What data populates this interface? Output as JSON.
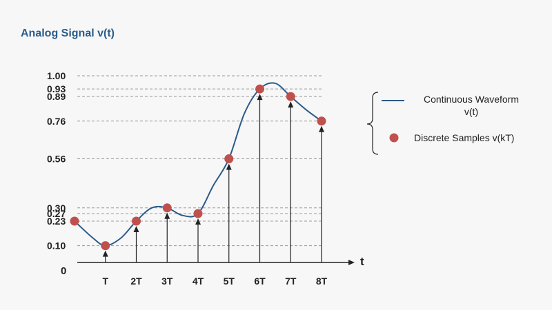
{
  "chart_data": {
    "type": "line",
    "title": "Analog Signal v(t)",
    "xlabel": "t",
    "ylabel": "",
    "origin_label": "0",
    "ylim": [
      0,
      1.0
    ],
    "y_ticks": [
      {
        "value": 1.0,
        "label": "1.00"
      },
      {
        "value": 0.93,
        "label": "0.93"
      },
      {
        "value": 0.89,
        "label": "0.89"
      },
      {
        "value": 0.76,
        "label": "0.76"
      },
      {
        "value": 0.56,
        "label": "0.56"
      },
      {
        "value": 0.3,
        "label": "0.30"
      },
      {
        "value": 0.27,
        "label": "0.27"
      },
      {
        "value": 0.23,
        "label": "0.23"
      },
      {
        "value": 0.1,
        "label": "0.10"
      }
    ],
    "categories": [
      "T",
      "2T",
      "3T",
      "4T",
      "5T",
      "6T",
      "7T",
      "8T"
    ],
    "series": [
      {
        "name": "Continuous Waveform v(t)",
        "kind": "curve",
        "x": [
          0,
          0.6,
          1,
          1.5,
          2,
          2.5,
          3,
          3.5,
          4,
          4.5,
          5,
          5.5,
          6,
          6.5,
          7,
          7.5,
          8
        ],
        "values": [
          0.23,
          0.14,
          0.1,
          0.14,
          0.23,
          0.3,
          0.3,
          0.26,
          0.27,
          0.42,
          0.56,
          0.8,
          0.93,
          0.96,
          0.89,
          0.82,
          0.76
        ]
      },
      {
        "name": "Discrete Samples v(kT)",
        "kind": "samples",
        "x": [
          0,
          1,
          2,
          3,
          4,
          5,
          6,
          7,
          8
        ],
        "values": [
          0.23,
          0.1,
          0.23,
          0.3,
          0.27,
          0.56,
          0.93,
          0.89,
          0.76
        ]
      }
    ],
    "legend_position": "right",
    "grid": "dashed reference lines at sample levels",
    "colors": {
      "title": "#2a5d8a",
      "curve": "#2b5a89",
      "sample": "#c0504d",
      "axis": "#222222",
      "dashes": "#999999"
    }
  },
  "legend": {
    "curve_line1": "Continuous Waveform",
    "curve_line2": "v(t)",
    "samples_label": "Discrete Samples v(kT)"
  }
}
